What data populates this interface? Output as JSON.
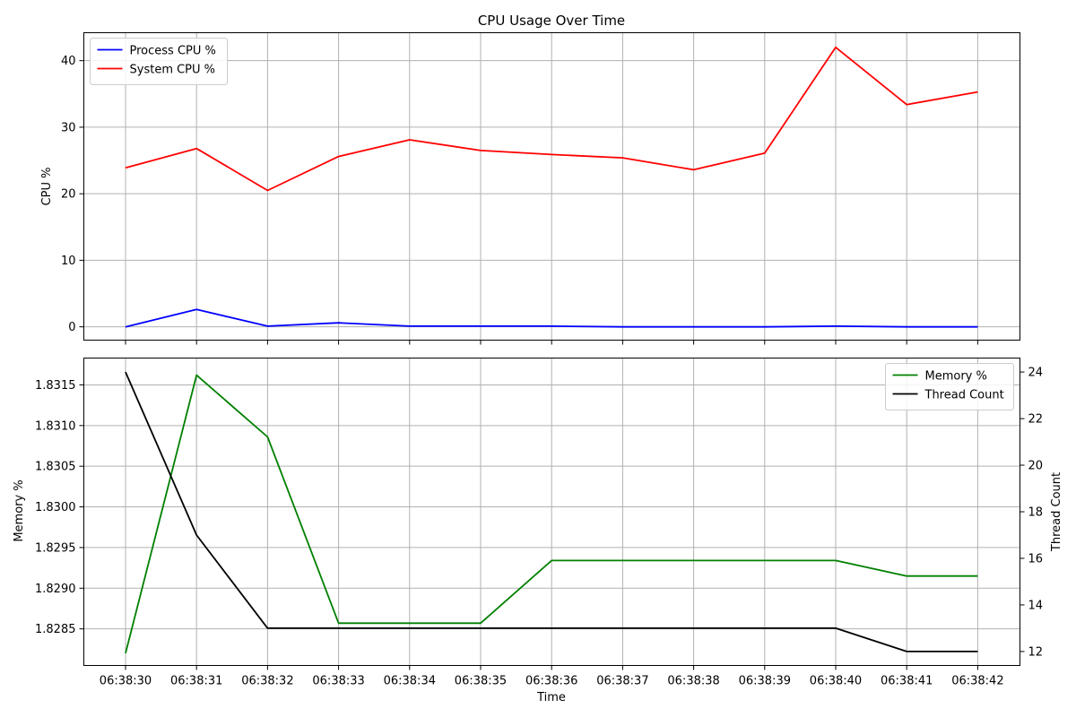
{
  "chart_data": [
    {
      "type": "line",
      "title": "CPU Usage Over Time",
      "xlabel": "",
      "ylabel": "CPU %",
      "categories": [
        "06:38:30",
        "06:38:31",
        "06:38:32",
        "06:38:33",
        "06:38:34",
        "06:38:35",
        "06:38:36",
        "06:38:37",
        "06:38:38",
        "06:38:39",
        "06:38:40",
        "06:38:41",
        "06:38:42"
      ],
      "ylim": [
        -2,
        44.2
      ],
      "yticks": [
        0,
        10,
        20,
        30,
        40
      ],
      "grid": true,
      "legend_position": "top-left",
      "series": [
        {
          "name": "Process CPU %",
          "color": "#0000ff",
          "values": [
            0.0,
            2.6,
            0.1,
            0.6,
            0.1,
            0.1,
            0.1,
            0.0,
            0.0,
            0.0,
            0.1,
            0.0,
            0.0
          ]
        },
        {
          "name": "System CPU %",
          "color": "#ff0000",
          "values": [
            23.9,
            26.8,
            20.5,
            25.6,
            28.1,
            26.5,
            25.9,
            25.4,
            23.6,
            26.1,
            42.0,
            33.4,
            35.3
          ]
        }
      ]
    },
    {
      "type": "line",
      "title": "",
      "xlabel": "Time",
      "ylabel": "Memory %",
      "ylabel_right": "Thread Count",
      "categories": [
        "06:38:30",
        "06:38:31",
        "06:38:32",
        "06:38:33",
        "06:38:34",
        "06:38:35",
        "06:38:36",
        "06:38:37",
        "06:38:38",
        "06:38:39",
        "06:38:40",
        "06:38:41",
        "06:38:42"
      ],
      "ylim": [
        1.82805,
        1.83183
      ],
      "yticks": [
        1.8285,
        1.829,
        1.8295,
        1.83,
        1.8305,
        1.831,
        1.8315
      ],
      "ylim_right": [
        11.4,
        24.6
      ],
      "yticks_right": [
        12,
        14,
        16,
        18,
        20,
        22,
        24
      ],
      "grid": true,
      "legend_position": "top-right",
      "series": [
        {
          "name": "Memory %",
          "color": "#008000",
          "axis": "left",
          "values": [
            1.8282,
            1.83162,
            1.83086,
            1.82857,
            1.82857,
            1.82857,
            1.82934,
            1.82934,
            1.82934,
            1.82934,
            1.82934,
            1.82915,
            1.82915
          ]
        },
        {
          "name": "Thread Count",
          "color": "#000000",
          "axis": "right",
          "values": [
            24,
            17,
            13,
            13,
            13,
            13,
            13,
            13,
            13,
            13,
            13,
            12,
            12
          ]
        }
      ]
    }
  ]
}
